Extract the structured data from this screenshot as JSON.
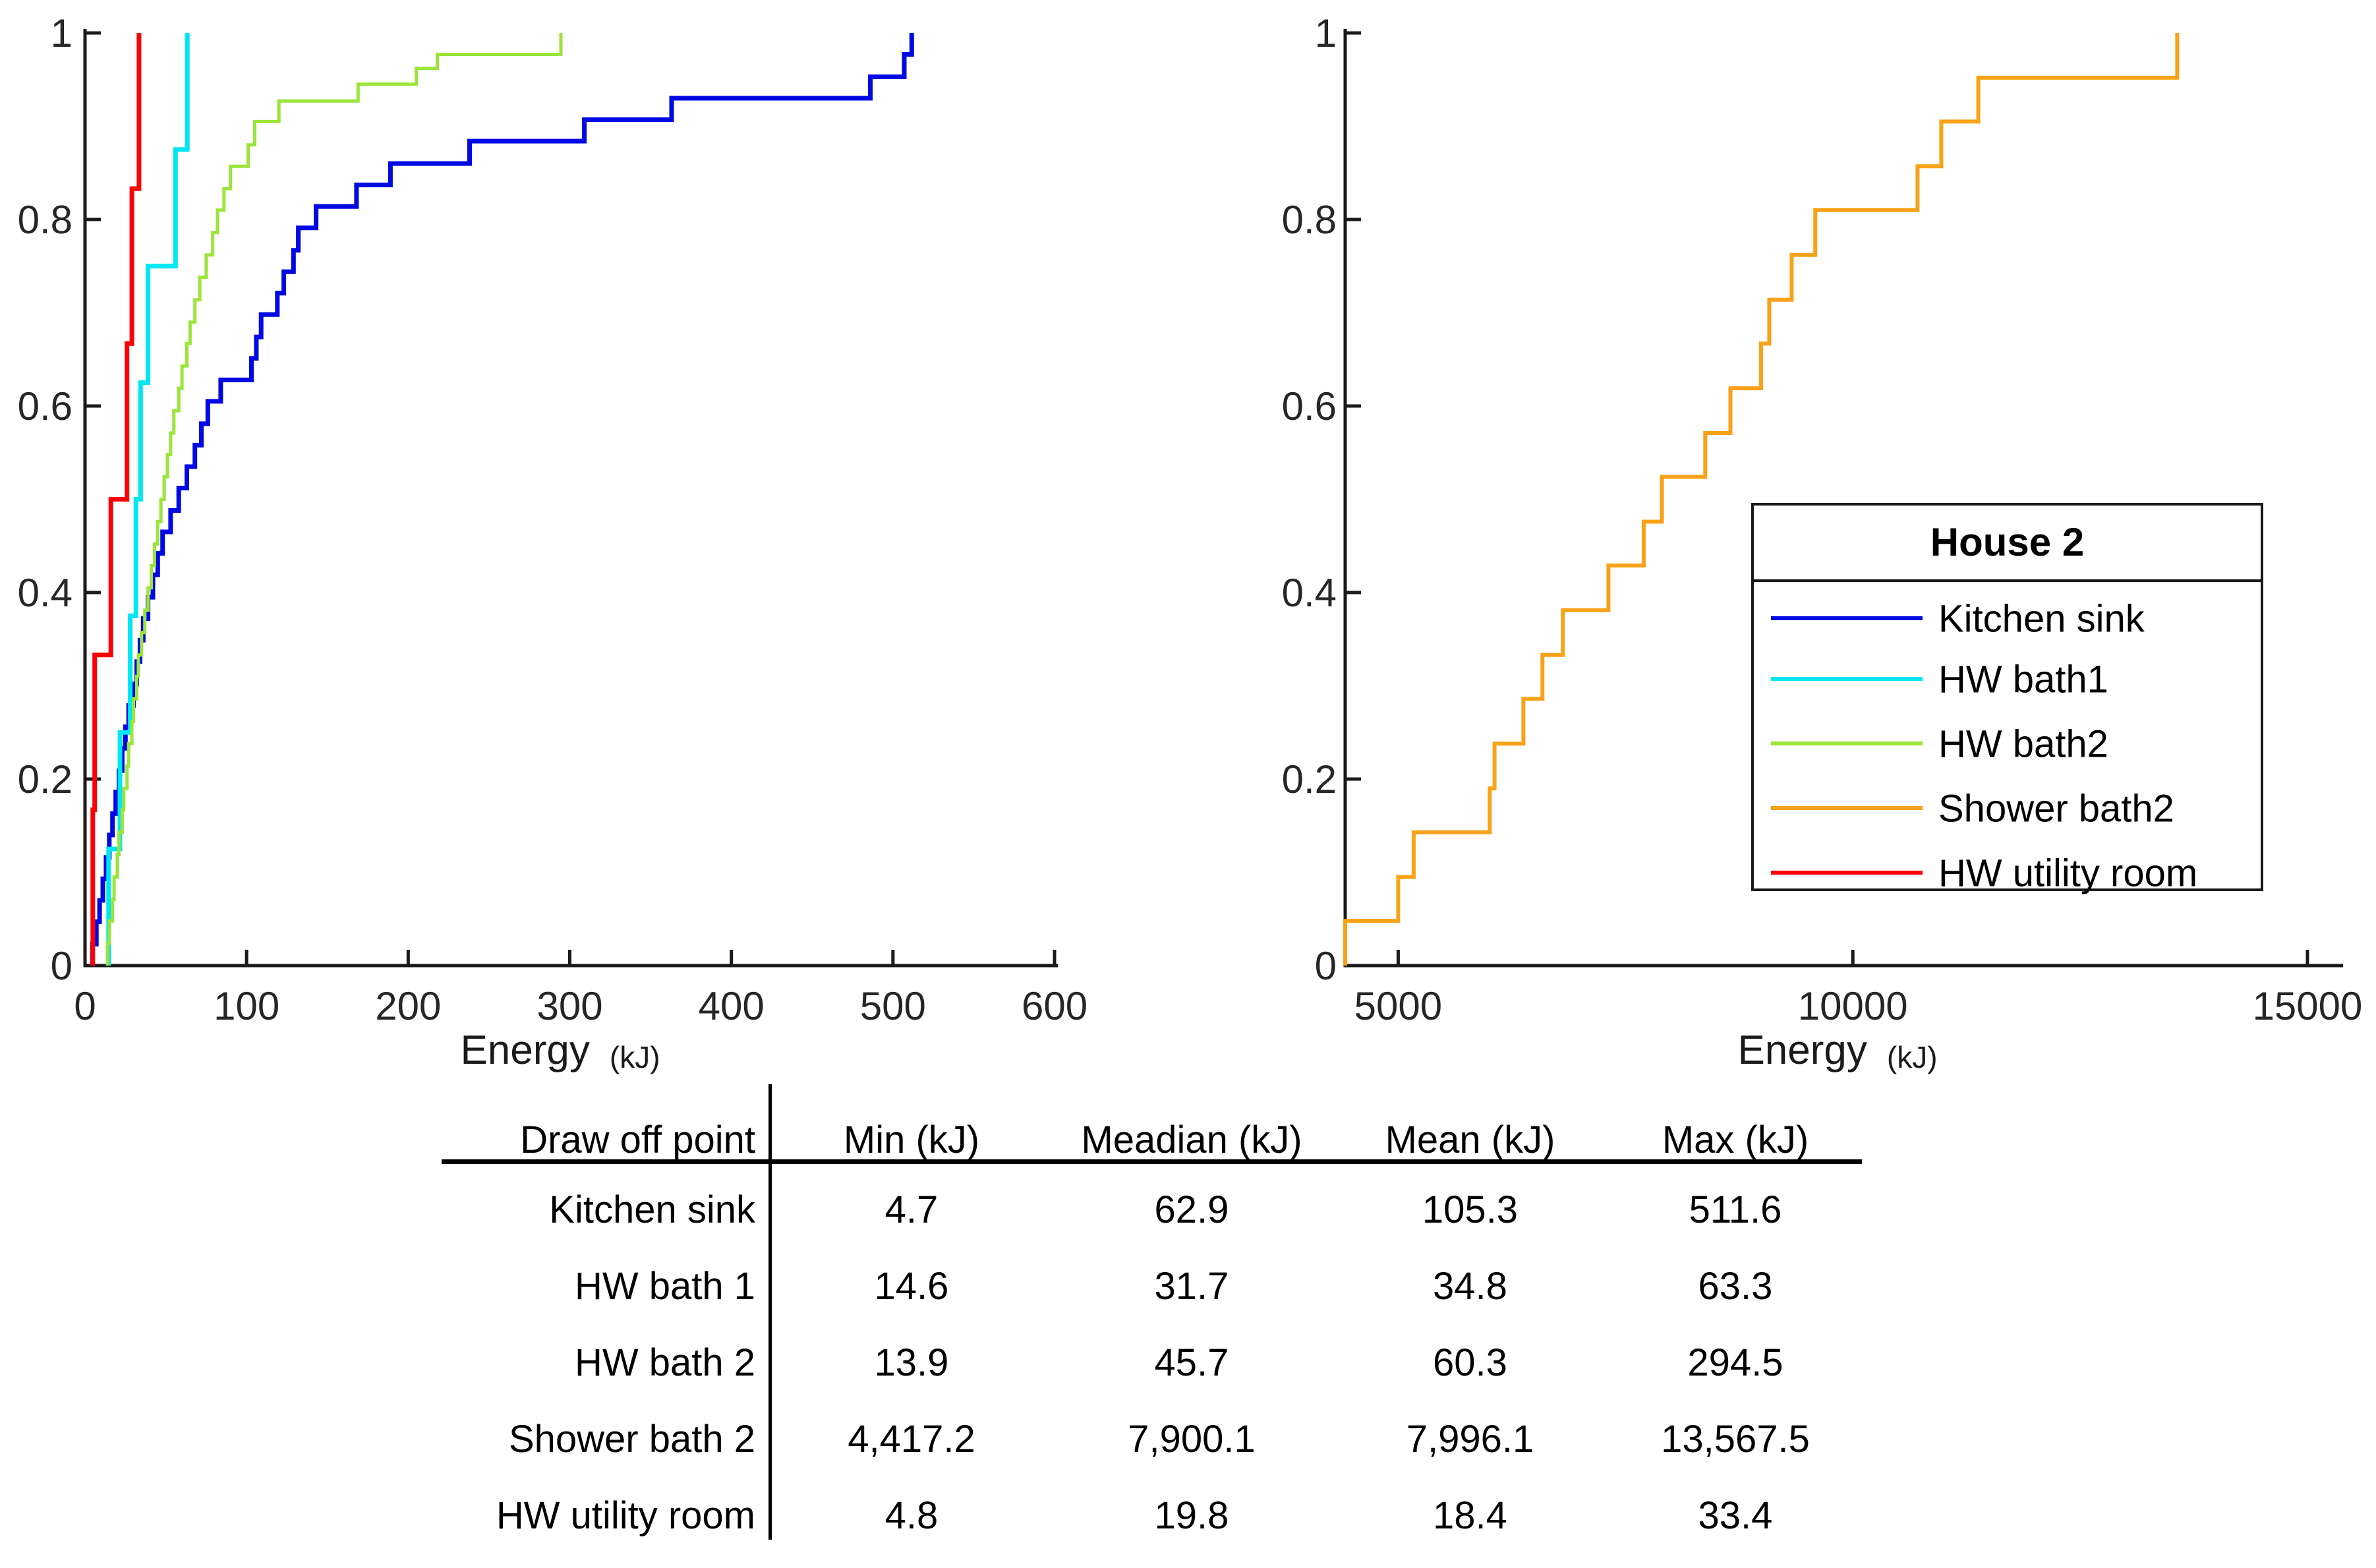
{
  "figure": {
    "xlabel": "Energy",
    "xunit": "(kJ)"
  },
  "chart_data": [
    {
      "type": "line",
      "subtype": "empirical-cdf-steps",
      "title": "",
      "xlabel": "Energy",
      "xunit": "(kJ)",
      "ylabel": "",
      "xlim": [
        0,
        600
      ],
      "ylim": [
        0,
        1
      ],
      "grid": false,
      "xticks": [
        0,
        100,
        200,
        300,
        400,
        500,
        600
      ],
      "xtick_labels": [
        "0",
        "100",
        "200",
        "300",
        "400",
        "500",
        "600"
      ],
      "yticks": [
        0,
        0.2,
        0.4,
        0.6,
        0.8,
        1
      ],
      "ytick_labels": [
        "0",
        "0.2",
        "0.4",
        "0.6",
        "0.8",
        "1"
      ],
      "series": [
        {
          "name": "Kitchen sink",
          "color": "#0008e3",
          "stroke_width": 7,
          "points": [
            [
              4.7,
              0.023
            ],
            [
              7,
              0.047
            ],
            [
              9,
              0.07
            ],
            [
              11,
              0.093
            ],
            [
              13,
              0.116
            ],
            [
              15,
              0.14
            ],
            [
              17,
              0.163
            ],
            [
              19,
              0.186
            ],
            [
              21,
              0.209
            ],
            [
              23,
              0.233
            ],
            [
              25,
              0.256
            ],
            [
              27,
              0.279
            ],
            [
              30,
              0.302
            ],
            [
              32,
              0.326
            ],
            [
              34,
              0.349
            ],
            [
              36,
              0.372
            ],
            [
              39,
              0.395
            ],
            [
              42,
              0.419
            ],
            [
              45,
              0.442
            ],
            [
              48,
              0.465
            ],
            [
              53,
              0.488
            ],
            [
              58,
              0.512
            ],
            [
              63,
              0.535
            ],
            [
              68,
              0.558
            ],
            [
              72,
              0.581
            ],
            [
              76,
              0.605
            ],
            [
              84,
              0.628
            ],
            [
              103,
              0.651
            ],
            [
              106,
              0.674
            ],
            [
              109,
              0.698
            ],
            [
              119,
              0.721
            ],
            [
              123,
              0.744
            ],
            [
              129,
              0.767
            ],
            [
              132,
              0.791
            ],
            [
              143,
              0.814
            ],
            [
              168,
              0.837
            ],
            [
              189,
              0.86
            ],
            [
              238,
              0.884
            ],
            [
              309,
              0.907
            ],
            [
              363,
              0.93
            ],
            [
              486,
              0.953
            ],
            [
              507,
              0.977
            ],
            [
              511.6,
              1.0
            ]
          ]
        },
        {
          "name": "HW bath1",
          "color": "#00e6f2",
          "stroke_width": 7,
          "points": [
            [
              14.6,
              0.125
            ],
            [
              21.6,
              0.25
            ],
            [
              28,
              0.375
            ],
            [
              31.5,
              0.5
            ],
            [
              34.4,
              0.625
            ],
            [
              39,
              0.75
            ],
            [
              56,
              0.875
            ],
            [
              63.3,
              1.0
            ]
          ]
        },
        {
          "name": "HW bath2",
          "color": "#9be53a",
          "stroke_width": 5,
          "points": [
            [
              13.9,
              0.024
            ],
            [
              15,
              0.048
            ],
            [
              17,
              0.071
            ],
            [
              18,
              0.095
            ],
            [
              20,
              0.119
            ],
            [
              21,
              0.143
            ],
            [
              23,
              0.167
            ],
            [
              24,
              0.19
            ],
            [
              26,
              0.214
            ],
            [
              27,
              0.238
            ],
            [
              29,
              0.262
            ],
            [
              30,
              0.286
            ],
            [
              32,
              0.31
            ],
            [
              33,
              0.333
            ],
            [
              35,
              0.357
            ],
            [
              37,
              0.381
            ],
            [
              39,
              0.405
            ],
            [
              41,
              0.429
            ],
            [
              43,
              0.452
            ],
            [
              45,
              0.476
            ],
            [
              47,
              0.5
            ],
            [
              49,
              0.524
            ],
            [
              51,
              0.548
            ],
            [
              53,
              0.571
            ],
            [
              55,
              0.595
            ],
            [
              58,
              0.619
            ],
            [
              60,
              0.643
            ],
            [
              63,
              0.667
            ],
            [
              65,
              0.69
            ],
            [
              68,
              0.714
            ],
            [
              71,
              0.738
            ],
            [
              75,
              0.762
            ],
            [
              79,
              0.786
            ],
            [
              82,
              0.81
            ],
            [
              86,
              0.833
            ],
            [
              90,
              0.857
            ],
            [
              101,
              0.88
            ],
            [
              105,
              0.905
            ],
            [
              120,
              0.927
            ],
            [
              169,
              0.945
            ],
            [
              205,
              0.962
            ],
            [
              218,
              0.977
            ],
            [
              294.5,
              1.0
            ]
          ]
        },
        {
          "name": "HW utility room",
          "color": "#fb0006",
          "stroke_width": 7,
          "points": [
            [
              4.8,
              0.167
            ],
            [
              6,
              0.333
            ],
            [
              16,
              0.5
            ],
            [
              26,
              0.667
            ],
            [
              29,
              0.833
            ],
            [
              33.4,
              1.0
            ]
          ]
        }
      ]
    },
    {
      "type": "line",
      "subtype": "empirical-cdf-steps",
      "title": "",
      "xlabel": "Energy",
      "xunit": "(kJ)",
      "ylabel": "",
      "xlim": [
        4417.2,
        15500
      ],
      "ylim": [
        0,
        1
      ],
      "grid": false,
      "xticks": [
        5000,
        10000,
        15000
      ],
      "xtick_labels": [
        "5000",
        "10000",
        "15000"
      ],
      "yticks": [
        0,
        0.2,
        0.4,
        0.6,
        0.8,
        1
      ],
      "ytick_labels": [
        "0",
        "0.2",
        "0.4",
        "0.6",
        "0.8",
        "1"
      ],
      "series": [
        {
          "name": "Shower bath2",
          "color": "#f8a21a",
          "stroke_width": 6,
          "points": [
            [
              4417.2,
              0.048
            ],
            [
              5000,
              0.095
            ],
            [
              5170,
              0.143
            ],
            [
              6007,
              0.19
            ],
            [
              6060,
              0.238
            ],
            [
              6377,
              0.286
            ],
            [
              6587,
              0.333
            ],
            [
              6811,
              0.381
            ],
            [
              7312,
              0.429
            ],
            [
              7700,
              0.476
            ],
            [
              7900.1,
              0.524
            ],
            [
              8377,
              0.571
            ],
            [
              8654,
              0.619
            ],
            [
              8991,
              0.667
            ],
            [
              9081,
              0.714
            ],
            [
              9327,
              0.762
            ],
            [
              9587,
              0.81
            ],
            [
              10712,
              0.857
            ],
            [
              10973,
              0.905
            ],
            [
              11380,
              0.952
            ],
            [
              13567.5,
              1.0
            ]
          ]
        }
      ],
      "legend": {
        "title": "House 2",
        "position": "right-center",
        "entries": [
          {
            "label": "Kitchen sink",
            "color": "#0008e3"
          },
          {
            "label": "HW bath1",
            "color": "#00e6f2"
          },
          {
            "label": "HW bath2",
            "color": "#9be53a"
          },
          {
            "label": "Shower bath2",
            "color": "#f8a21a"
          },
          {
            "label": "HW utility room",
            "color": "#fb0006"
          }
        ]
      }
    }
  ],
  "table": {
    "headers": [
      "Draw off point",
      "Min (kJ)",
      "Meadian (kJ)",
      "Mean (kJ)",
      "Max (kJ)"
    ],
    "rows": [
      {
        "label": "Kitchen sink",
        "values": [
          "4.7",
          "62.9",
          "105.3",
          "511.6"
        ]
      },
      {
        "label": "HW bath 1",
        "values": [
          "14.6",
          "31.7",
          "34.8",
          "63.3"
        ]
      },
      {
        "label": "HW bath 2",
        "values": [
          "13.9",
          "45.7",
          "60.3",
          "294.5"
        ]
      },
      {
        "label": "Shower bath 2",
        "values": [
          "4,417.2",
          "7,900.1",
          "7,996.1",
          "13,567.5"
        ]
      },
      {
        "label": "HW utility room",
        "values": [
          "4.8",
          "19.8",
          "18.4",
          "33.4"
        ]
      }
    ]
  },
  "colors": {
    "axis": "#1a1a1a",
    "tick_text": "#262626",
    "background": "#ffffff"
  }
}
